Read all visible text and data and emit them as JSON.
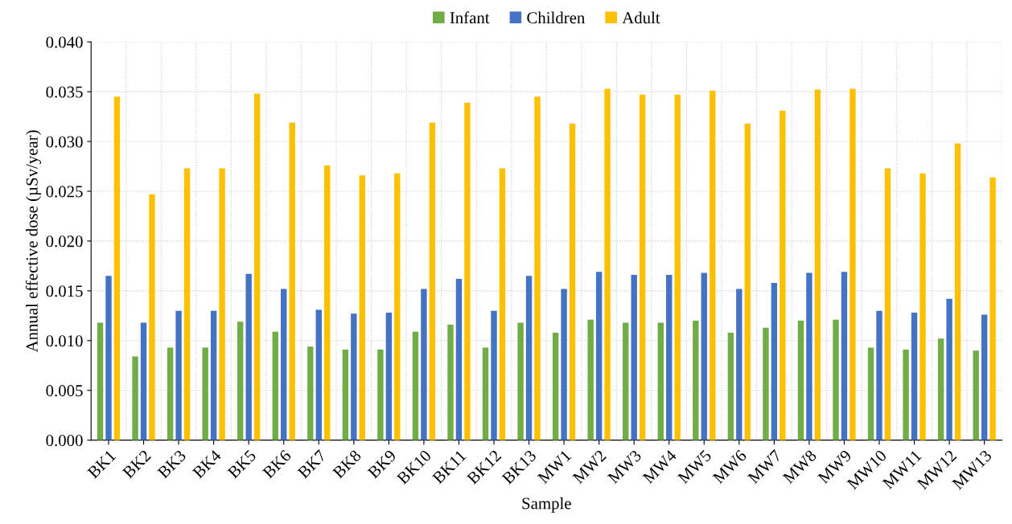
{
  "chart_data": {
    "type": "bar",
    "xlabel": "Sample",
    "ylabel": "Annual effective dose (µSv/year)",
    "categories": [
      "BK1",
      "BK2",
      "BK3",
      "BK4",
      "BK5",
      "BK6",
      "BK7",
      "BK8",
      "BK9",
      "BK10",
      "BK11",
      "BK12",
      "BK13",
      "MW1",
      "MW2",
      "MW3",
      "MW4",
      "MW5",
      "MW6",
      "MW7",
      "MW8",
      "MW9",
      "MW10",
      "MW11",
      "MW12",
      "MW13"
    ],
    "series": [
      {
        "name": "Infant",
        "color": "#70ad47",
        "values": [
          0.0118,
          0.0084,
          0.0093,
          0.0093,
          0.0119,
          0.0109,
          0.0094,
          0.0091,
          0.0091,
          0.0109,
          0.0116,
          0.0093,
          0.0118,
          0.0108,
          0.0121,
          0.0118,
          0.0118,
          0.012,
          0.0108,
          0.0113,
          0.012,
          0.0121,
          0.0093,
          0.0091,
          0.0102,
          0.009
        ]
      },
      {
        "name": "Children",
        "color": "#4472c4",
        "values": [
          0.0165,
          0.0118,
          0.013,
          0.013,
          0.0167,
          0.0152,
          0.0131,
          0.0127,
          0.0128,
          0.0152,
          0.0162,
          0.013,
          0.0165,
          0.0152,
          0.0169,
          0.0166,
          0.0166,
          0.0168,
          0.0152,
          0.0158,
          0.0168,
          0.0169,
          0.013,
          0.0128,
          0.0142,
          0.0126
        ]
      },
      {
        "name": "Adult",
        "color": "#ffc000",
        "values": [
          0.0345,
          0.0247,
          0.0273,
          0.0273,
          0.0348,
          0.0319,
          0.0276,
          0.0266,
          0.0268,
          0.0319,
          0.0339,
          0.0273,
          0.0345,
          0.0318,
          0.0353,
          0.0347,
          0.0347,
          0.0351,
          0.0318,
          0.0331,
          0.0352,
          0.0353,
          0.0273,
          0.0268,
          0.0298,
          0.0264
        ]
      }
    ],
    "ylim": [
      0,
      0.04
    ],
    "yticks": [
      {
        "value": 0,
        "label": "0.000"
      },
      {
        "value": 0.005,
        "label": "0.005"
      },
      {
        "value": 0.01,
        "label": "0.010"
      },
      {
        "value": 0.015,
        "label": "0.015"
      },
      {
        "value": 0.02,
        "label": "0.020"
      },
      {
        "value": 0.025,
        "label": "0.025"
      },
      {
        "value": 0.03,
        "label": "0.030"
      },
      {
        "value": 0.035,
        "label": "0.035"
      },
      {
        "value": 0.04,
        "label": "0.040"
      }
    ],
    "grid": true,
    "legend": "top"
  }
}
